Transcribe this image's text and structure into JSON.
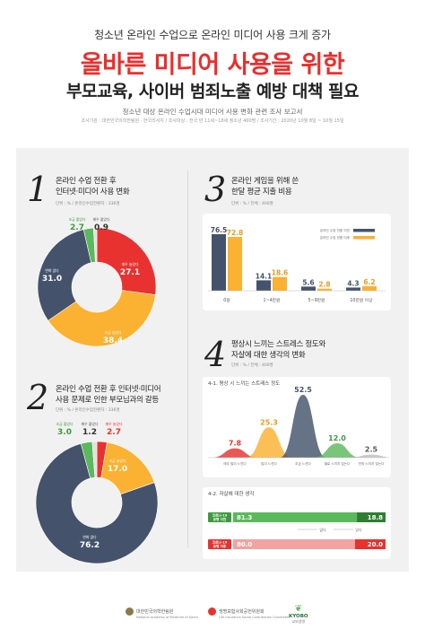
{
  "header": {
    "supertitle": "청소년 온라인 수업으로 온라인 미디어 사용 크게 증가",
    "title": "올바른 미디어 사용을 위한",
    "subtitle": "부모교육, 사이버 범죄노출 예방 대책 필요",
    "report": "청소년 대상 온라인 수업시대 미디어 사용 변화 관련 조사 보고서",
    "meta": "조사기관 : 대한민국의학한림원 · 한국리서치 / 조사대상 : 전국 만 11세~18세 청소년 400명 / 조사기간 : 2020년 10월 8일 ~ 10월 15일"
  },
  "sections": {
    "s1": {
      "num": "1",
      "line1": "온라인 수업 전환 후",
      "line2": "인터넷·미디어 사용 변화",
      "unit": "단위 : % / 온라인수업전환자 : 336명"
    },
    "s2": {
      "num": "2",
      "line1": "온라인 수업 전환 후 인터넷·미디어",
      "line2": "사용 문제로 인한 부모님과의 갈등",
      "unit": "단위 : % / 온라인수업전환자 : 336명"
    },
    "s3": {
      "num": "3",
      "line1": "온라인 게임을 위해 쓴",
      "line2": "한달 평균 지출 비용",
      "unit": "단위 : % / 전체 : 400명"
    },
    "s4": {
      "num": "4",
      "line1": "평상시 느끼는 스트레스 정도와",
      "line2": "자살에 대한 생각의 변화",
      "unit": "단위 : % / 전체 : 400명"
    }
  },
  "chart_data": [
    {
      "type": "pie",
      "slices": [
        {
          "label": "매우 늘었다",
          "value": 27.1,
          "color": "#e8322f"
        },
        {
          "label": "조금 늘었다",
          "value": 38.4,
          "color": "#fbb131"
        },
        {
          "label": "변화 없다",
          "value": 31.0,
          "color": "#44536b"
        },
        {
          "label": "조금 줄었다",
          "value": 2.7,
          "color": "#5cb85c"
        },
        {
          "label": "매우 줄었다",
          "value": 0.9,
          "color": "#e0e0e0"
        }
      ]
    },
    {
      "type": "pie",
      "slices": [
        {
          "label": "매우 늘었다",
          "value": 2.7,
          "color": "#e8322f"
        },
        {
          "label": "조금 늘었다",
          "value": 17.0,
          "color": "#fbb131"
        },
        {
          "label": "변화 없다",
          "value": 76.2,
          "color": "#44536b"
        },
        {
          "label": "조금 줄었다",
          "value": 3.0,
          "color": "#5cb85c"
        },
        {
          "label": "매우 줄었다",
          "value": 1.2,
          "color": "#e0e0e0"
        }
      ]
    },
    {
      "type": "bar",
      "categories": [
        "0원",
        "1~4만원",
        "5~9만원",
        "10만원 이상"
      ],
      "series": [
        {
          "name": "온라인 수업 전환 이전",
          "values": [
            76.5,
            14.1,
            5.6,
            4.3
          ],
          "color": "#44536b"
        },
        {
          "name": "온라인 수업 전환 이후",
          "values": [
            72.8,
            18.6,
            2.8,
            6.2
          ],
          "color": "#fbb131"
        }
      ],
      "ylim": [
        0,
        85
      ]
    },
    {
      "type": "area",
      "title": "4-1. 평상 시 느끼는 스트레스 정도",
      "categories": [
        "매우 많이 느낀다",
        "많이 느낀다",
        "조금 느낀다",
        "별로 느끼지 않는다",
        "전혀 느끼지 않는다"
      ],
      "values": [
        7.8,
        25.3,
        52.5,
        12.0,
        2.5
      ],
      "colors": [
        "#e8322f",
        "#fbb131",
        "#44536b",
        "#5cb85c",
        "#bdbdbd"
      ],
      "ylim": [
        0,
        60
      ]
    },
    {
      "type": "bar",
      "title": "4-2. 자살에 대한 생각",
      "categories": [
        "코로나-19 유행 이전",
        "코로나-19 유행 이후"
      ],
      "series": [
        {
          "name": "없다",
          "values": [
            81.3,
            80.0
          ],
          "color": "#5cb85c"
        },
        {
          "name": "있다",
          "values": [
            18.8,
            20.0
          ],
          "color": "#e8322f"
        }
      ],
      "legend": [
        "없다",
        "있다"
      ]
    }
  ],
  "footer": {
    "org1": "대한민국의학한림원",
    "org1_en": "National Academy of Medicine of Korea",
    "org2": "생명보험사회공헌위원회",
    "org2_en": "Life Insurance Social Contribution Committee",
    "org3": "KYOBO",
    "org3_sub": "교보생명"
  }
}
